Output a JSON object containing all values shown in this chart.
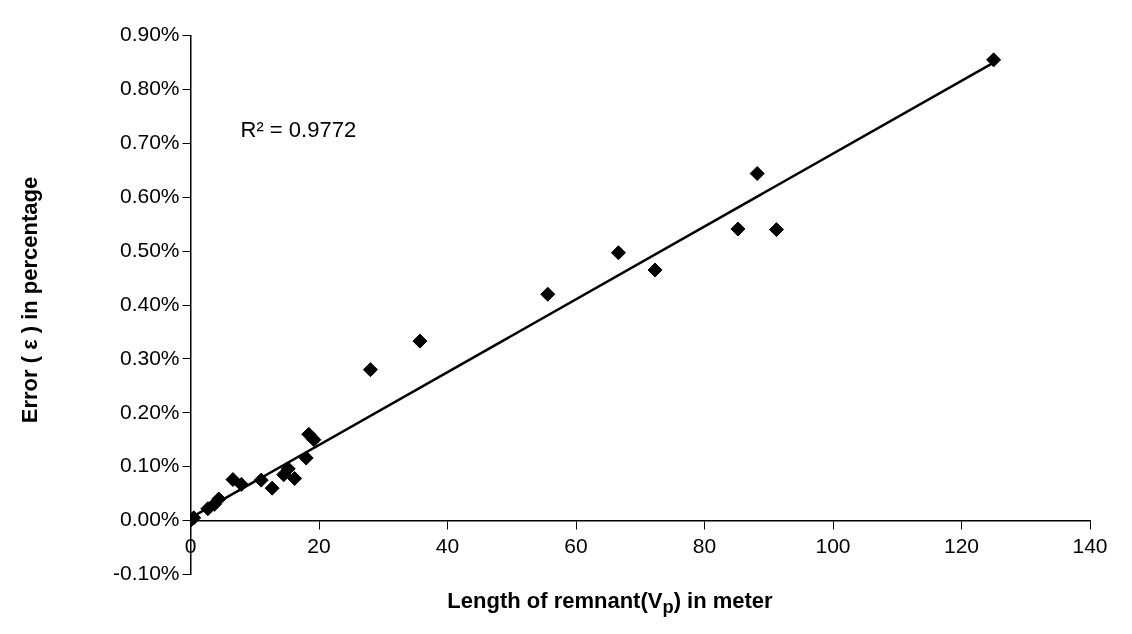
{
  "chart_data": {
    "type": "scatter",
    "xlabel": "Length of remnant(V$_{p}$) in meter",
    "ylabel": "Error ( ε ) in percentage",
    "annotations": [
      "R² = 0.9772"
    ],
    "xlim": [
      0,
      140
    ],
    "xticks": [
      0,
      20,
      40,
      60,
      80,
      100,
      120,
      140
    ],
    "ylim": [
      -0.1,
      0.9
    ],
    "yticks": [
      {
        "value": -0.1,
        "label": "-0.10%"
      },
      {
        "value": 0,
        "label": "0.00%"
      },
      {
        "value": 0.1,
        "label": "0.10%"
      },
      {
        "value": 0.2,
        "label": "0.20%"
      },
      {
        "value": 0.3,
        "label": "0.30%"
      },
      {
        "value": 0.4,
        "label": "0.40%"
      },
      {
        "value": 0.5,
        "label": "0.50%"
      },
      {
        "value": 0.6,
        "label": "0.60%"
      },
      {
        "value": 0.7,
        "label": "0.70%"
      },
      {
        "value": 0.8,
        "label": "0.80%"
      },
      {
        "value": 0.9,
        "label": "0.90%"
      }
    ],
    "grid": false,
    "legend": false,
    "marker": "diamond",
    "series": [
      {
        "color": "#000000",
        "x": [
          0,
          0.5,
          2.7,
          3.7,
          4.4,
          6.6,
          7.9,
          11,
          12.7,
          14.5,
          15.2,
          16.2,
          18,
          18.4,
          19.2,
          28,
          35.7,
          55.6,
          66.6,
          72.3,
          85.2,
          88.2,
          91.2,
          125
        ],
        "values": [
          0,
          0.005,
          0.022,
          0.03,
          0.04,
          0.076,
          0.067,
          0.075,
          0.06,
          0.085,
          0.096,
          0.078,
          0.116,
          0.16,
          0.15,
          0.28,
          0.333,
          0.42,
          0.497,
          0.465,
          0.541,
          0.644,
          0.54,
          0.855
        ]
      },
      {
        "type": "line",
        "color": "#000000",
        "marker": "none",
        "x": [
          0,
          125
        ],
        "values": [
          0.005,
          0.85
        ]
      }
    ]
  }
}
